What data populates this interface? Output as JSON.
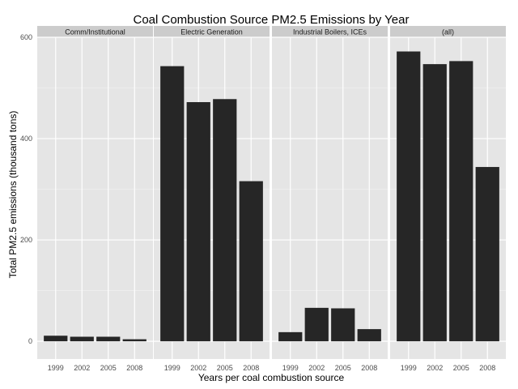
{
  "chart_data": {
    "type": "bar",
    "title": "Coal Combustion Source PM2.5 Emissions by Year",
    "xlabel": "Years per coal combustion source",
    "ylabel": "Total PM2.5 emissions (thousand tons)",
    "ylim": [
      -35,
      600
    ],
    "yticks": [
      "0",
      "200",
      "400",
      "600"
    ],
    "ytick_values": [
      0,
      200,
      400,
      600
    ],
    "categories": [
      "1999",
      "2002",
      "2005",
      "2008"
    ],
    "grid": true,
    "bar_color": "#262626",
    "panel_background": "#e5e5e5",
    "strip_background": "#cccccc",
    "facets": [
      {
        "name": "Comm/Institutional",
        "values": [
          11,
          9,
          9,
          4
        ]
      },
      {
        "name": "Electric Generation",
        "values": [
          543,
          472,
          478,
          316
        ]
      },
      {
        "name": "Industrial Boilers, ICEs",
        "values": [
          18,
          66,
          65,
          24
        ]
      },
      {
        "name": "(all)",
        "values": [
          572,
          547,
          553,
          344
        ]
      }
    ]
  }
}
